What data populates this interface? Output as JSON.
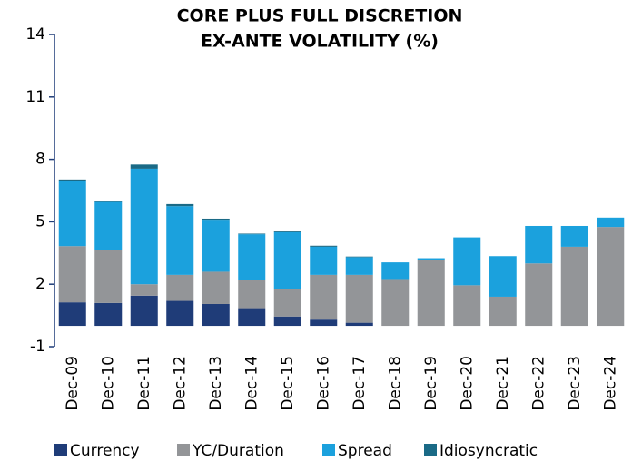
{
  "chart_data": {
    "type": "stacked_bar",
    "title": [
      "CORE PLUS FULL DISCRETION",
      "EX-ANTE VOLATILITY (%)"
    ],
    "categories": [
      "Dec-09",
      "Dec-10",
      "Dec-11",
      "Dec-12",
      "Dec-13",
      "Dec-14",
      "Dec-15",
      "Dec-16",
      "Dec-17",
      "Dec-18",
      "Dec-19",
      "Dec-20",
      "Dec-21",
      "Dec-22",
      "Dec-23",
      "Dec-24"
    ],
    "series": [
      {
        "name": "Currency",
        "color": "#1f3c78",
        "values": [
          1.13,
          1.1,
          1.45,
          1.2,
          1.05,
          0.85,
          0.45,
          0.3,
          0.15,
          0,
          0,
          0,
          0,
          0,
          0,
          0
        ]
      },
      {
        "name": "YC/Duration",
        "color": "#939598",
        "values": [
          2.7,
          2.55,
          0.55,
          1.25,
          1.55,
          1.35,
          1.3,
          2.15,
          2.3,
          2.25,
          3.15,
          1.95,
          1.4,
          3.0,
          3.8,
          4.75
        ]
      },
      {
        "name": "Spread",
        "color": "#1ba1dd",
        "values": [
          3.15,
          2.3,
          5.55,
          3.3,
          2.5,
          2.2,
          2.75,
          1.35,
          0.85,
          0.8,
          0.1,
          2.3,
          1.95,
          1.8,
          1.0,
          0.45
        ]
      },
      {
        "name": "Idiosyncratic",
        "color": "#1a6a86",
        "values": [
          0.05,
          0.05,
          0.2,
          0.1,
          0.05,
          0.03,
          0.05,
          0.05,
          0.03,
          0,
          0,
          0,
          0,
          0,
          0,
          0
        ]
      }
    ],
    "ylim": [
      -1,
      14
    ],
    "yticks": [
      -1,
      2,
      5,
      8,
      11,
      14
    ],
    "legend": "bottom"
  }
}
